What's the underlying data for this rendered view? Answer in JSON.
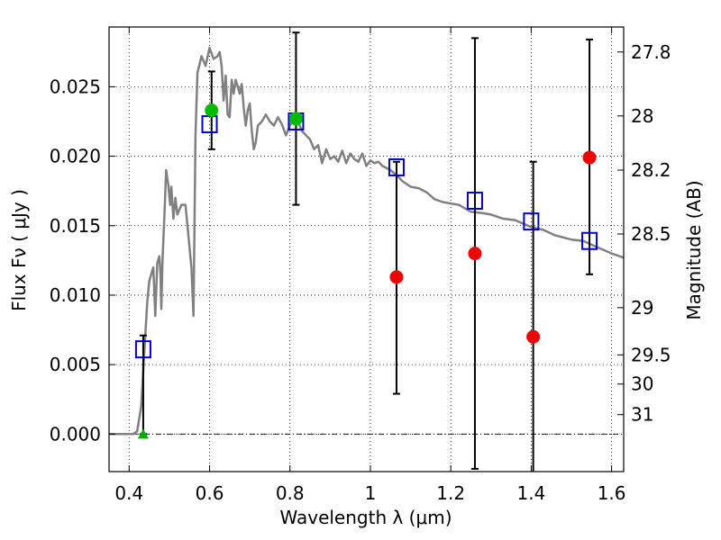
{
  "chart_data": {
    "type": "scatter",
    "xlabel": "Wavelength  λ (μm)",
    "ylabel": "Flux  Fν  ( μJy )",
    "ylabel_right": "Magnitude (AB)",
    "xlim": [
      0.35,
      1.63
    ],
    "ylim": [
      -0.0027,
      0.0293
    ],
    "xticks": [
      0.4,
      0.6,
      0.8,
      1.0,
      1.2,
      1.4,
      1.6
    ],
    "xtick_labels": [
      "0.4",
      "0.6",
      "0.8",
      "1",
      "1.2",
      "1.4",
      "1.6"
    ],
    "yticks": [
      0.0,
      0.005,
      0.01,
      0.015,
      0.02,
      0.025
    ],
    "ytick_labels": [
      "0.000",
      "0.005",
      "0.010",
      "0.015",
      "0.020",
      "0.025"
    ],
    "right_ticks": [
      {
        "label": "27.8",
        "flux": 0.0275
      },
      {
        "label": "28",
        "flux": 0.0229
      },
      {
        "label": "28.2",
        "flux": 0.019
      },
      {
        "label": "28.5",
        "flux": 0.0144
      },
      {
        "label": "29",
        "flux": 0.0091
      },
      {
        "label": "29.5",
        "flux": 0.0057
      },
      {
        "label": "30",
        "flux": 0.0036
      },
      {
        "label": "31",
        "flux": 0.0014
      }
    ],
    "grid": true,
    "model_spectrum": {
      "color": "#808080",
      "points": [
        [
          0.35,
          0.0
        ],
        [
          0.41,
          0.0
        ],
        [
          0.42,
          0.0002
        ],
        [
          0.43,
          0.002
        ],
        [
          0.44,
          0.007
        ],
        [
          0.445,
          0.0095
        ],
        [
          0.45,
          0.011
        ],
        [
          0.455,
          0.0115
        ],
        [
          0.46,
          0.012
        ],
        [
          0.465,
          0.0085
        ],
        [
          0.47,
          0.0123
        ],
        [
          0.475,
          0.0128
        ],
        [
          0.478,
          0.0115
        ],
        [
          0.48,
          0.009
        ],
        [
          0.483,
          0.0125
        ],
        [
          0.488,
          0.016
        ],
        [
          0.492,
          0.019
        ],
        [
          0.497,
          0.018
        ],
        [
          0.502,
          0.0165
        ],
        [
          0.505,
          0.0178
        ],
        [
          0.51,
          0.0155
        ],
        [
          0.515,
          0.017
        ],
        [
          0.52,
          0.0158
        ],
        [
          0.53,
          0.0165
        ],
        [
          0.54,
          0.0165
        ],
        [
          0.55,
          0.0135
        ],
        [
          0.555,
          0.012
        ],
        [
          0.56,
          0.0085
        ],
        [
          0.565,
          0.0215
        ],
        [
          0.57,
          0.026
        ],
        [
          0.58,
          0.0272
        ],
        [
          0.59,
          0.0265
        ],
        [
          0.6,
          0.0278
        ],
        [
          0.61,
          0.027
        ],
        [
          0.62,
          0.0272
        ],
        [
          0.625,
          0.0275
        ],
        [
          0.63,
          0.0265
        ],
        [
          0.635,
          0.024
        ],
        [
          0.64,
          0.0258
        ],
        [
          0.645,
          0.023
        ],
        [
          0.65,
          0.0228
        ],
        [
          0.655,
          0.0255
        ],
        [
          0.66,
          0.0245
        ],
        [
          0.665,
          0.0255
        ],
        [
          0.67,
          0.025
        ],
        [
          0.675,
          0.0245
        ],
        [
          0.68,
          0.0252
        ],
        [
          0.685,
          0.0235
        ],
        [
          0.69,
          0.0222
        ],
        [
          0.695,
          0.0233
        ],
        [
          0.7,
          0.0238
        ],
        [
          0.705,
          0.0218
        ],
        [
          0.71,
          0.0205
        ],
        [
          0.715,
          0.021
        ],
        [
          0.72,
          0.0222
        ],
        [
          0.73,
          0.0225
        ],
        [
          0.74,
          0.023
        ],
        [
          0.75,
          0.0225
        ],
        [
          0.76,
          0.0222
        ],
        [
          0.77,
          0.0228
        ],
        [
          0.78,
          0.0223
        ],
        [
          0.79,
          0.0215
        ],
        [
          0.8,
          0.0222
        ],
        [
          0.81,
          0.0228
        ],
        [
          0.82,
          0.0225
        ],
        [
          0.83,
          0.0218
        ],
        [
          0.84,
          0.0215
        ],
        [
          0.85,
          0.0212
        ],
        [
          0.86,
          0.0205
        ],
        [
          0.87,
          0.0208
        ],
        [
          0.88,
          0.0195
        ],
        [
          0.89,
          0.0205
        ],
        [
          0.9,
          0.0198
        ],
        [
          0.91,
          0.02
        ],
        [
          0.92,
          0.0196
        ],
        [
          0.93,
          0.0204
        ],
        [
          0.94,
          0.0195
        ],
        [
          0.95,
          0.0202
        ],
        [
          0.96,
          0.0198
        ],
        [
          0.97,
          0.0196
        ],
        [
          0.98,
          0.0202
        ],
        [
          0.99,
          0.0193
        ],
        [
          1.0,
          0.0197
        ],
        [
          1.01,
          0.0195
        ],
        [
          1.02,
          0.0196
        ],
        [
          1.03,
          0.0193
        ],
        [
          1.05,
          0.019
        ],
        [
          1.07,
          0.0185
        ],
        [
          1.08,
          0.0182
        ],
        [
          1.1,
          0.0178
        ],
        [
          1.12,
          0.0177
        ],
        [
          1.14,
          0.0174
        ],
        [
          1.16,
          0.0169
        ],
        [
          1.18,
          0.0167
        ],
        [
          1.2,
          0.0166
        ],
        [
          1.22,
          0.0165
        ],
        [
          1.25,
          0.016
        ],
        [
          1.28,
          0.0159
        ],
        [
          1.3,
          0.0158
        ],
        [
          1.33,
          0.0155
        ],
        [
          1.36,
          0.0154
        ],
        [
          1.4,
          0.0149
        ],
        [
          1.43,
          0.0147
        ],
        [
          1.46,
          0.0143
        ],
        [
          1.5,
          0.014
        ],
        [
          1.53,
          0.0139
        ],
        [
          1.56,
          0.0135
        ],
        [
          1.6,
          0.013
        ],
        [
          1.63,
          0.0127
        ]
      ]
    },
    "model_photometry": {
      "marker": "open-square",
      "color": "#0000cc",
      "points": [
        [
          0.435,
          0.0061
        ],
        [
          0.6,
          0.0223
        ],
        [
          0.815,
          0.0225
        ],
        [
          1.065,
          0.0192
        ],
        [
          1.26,
          0.0168
        ],
        [
          1.4,
          0.0153
        ],
        [
          1.545,
          0.0139
        ]
      ]
    },
    "observed_photometry": [
      {
        "x": 0.435,
        "y": 0.0,
        "yerr_low": 0.0,
        "yerr_high": 0.0071,
        "marker": "triangle",
        "color": "#00aa00"
      },
      {
        "x": 0.605,
        "y": 0.0233,
        "yerr_low": 0.0205,
        "yerr_high": 0.0261,
        "marker": "circle",
        "color": "#00bb00"
      },
      {
        "x": 0.815,
        "y": 0.0227,
        "yerr_low": 0.0165,
        "yerr_high": 0.0289,
        "marker": "circle",
        "color": "#00bb00"
      },
      {
        "x": 1.065,
        "y": 0.0113,
        "yerr_low": 0.0029,
        "yerr_high": 0.0196,
        "marker": "circle",
        "color": "#ee0000"
      },
      {
        "x": 1.26,
        "y": 0.013,
        "yerr_low": -0.0025,
        "yerr_high": 0.0285,
        "marker": "circle",
        "color": "#ee0000"
      },
      {
        "x": 1.405,
        "y": 0.007,
        "yerr_low": -0.0027,
        "yerr_high": 0.0196,
        "marker": "circle",
        "color": "#ee0000"
      },
      {
        "x": 1.545,
        "y": 0.0199,
        "yerr_low": 0.0115,
        "yerr_high": 0.0284,
        "marker": "circle",
        "color": "#ee0000"
      }
    ]
  }
}
